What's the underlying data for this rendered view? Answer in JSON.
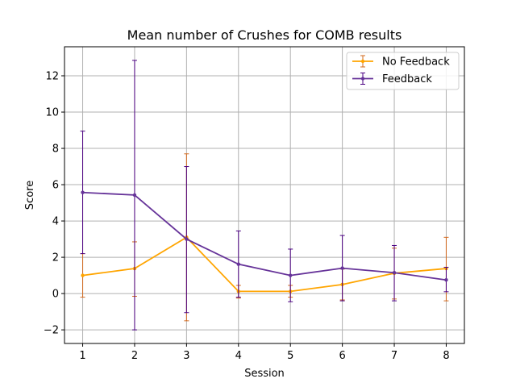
{
  "chart_data": {
    "type": "line",
    "title": "Mean number of Crushes for COMB results",
    "xlabel": "Session",
    "ylabel": "Score",
    "x": [
      1,
      2,
      3,
      4,
      5,
      6,
      7,
      8
    ],
    "xlim": [
      0.65,
      8.35
    ],
    "ylim": [
      -2.75,
      13.6
    ],
    "xticks": [
      "1",
      "2",
      "3",
      "4",
      "5",
      "6",
      "7",
      "8"
    ],
    "yticks": [
      -2,
      0,
      2,
      4,
      6,
      8,
      10,
      12
    ],
    "ytick_labels": [
      "−2",
      "0",
      "2",
      "4",
      "6",
      "8",
      "10",
      "12"
    ],
    "grid": true,
    "legend_position": "top-right",
    "series": [
      {
        "name": "No Feedback",
        "color": "#ffa500",
        "error_color": "#d2691e",
        "values": [
          1.0,
          1.38,
          3.1,
          0.12,
          0.12,
          0.5,
          1.12,
          1.38
        ],
        "lower": [
          -0.2,
          -0.15,
          -1.5,
          -0.25,
          -0.2,
          -0.35,
          -0.3,
          -0.4
        ],
        "upper": [
          2.2,
          2.85,
          7.7,
          0.45,
          0.45,
          1.35,
          2.5,
          3.1
        ]
      },
      {
        "name": "Feedback",
        "color": "#663399",
        "error_color": "#4b0082",
        "values": [
          5.57,
          5.43,
          3.0,
          1.62,
          1.0,
          1.4,
          1.15,
          0.75
        ],
        "lower": [
          2.2,
          -2.0,
          -1.05,
          -0.2,
          -0.45,
          -0.4,
          -0.4,
          0.1
        ],
        "upper": [
          8.95,
          12.85,
          7.0,
          3.45,
          2.45,
          3.2,
          2.65,
          1.45
        ]
      }
    ]
  }
}
